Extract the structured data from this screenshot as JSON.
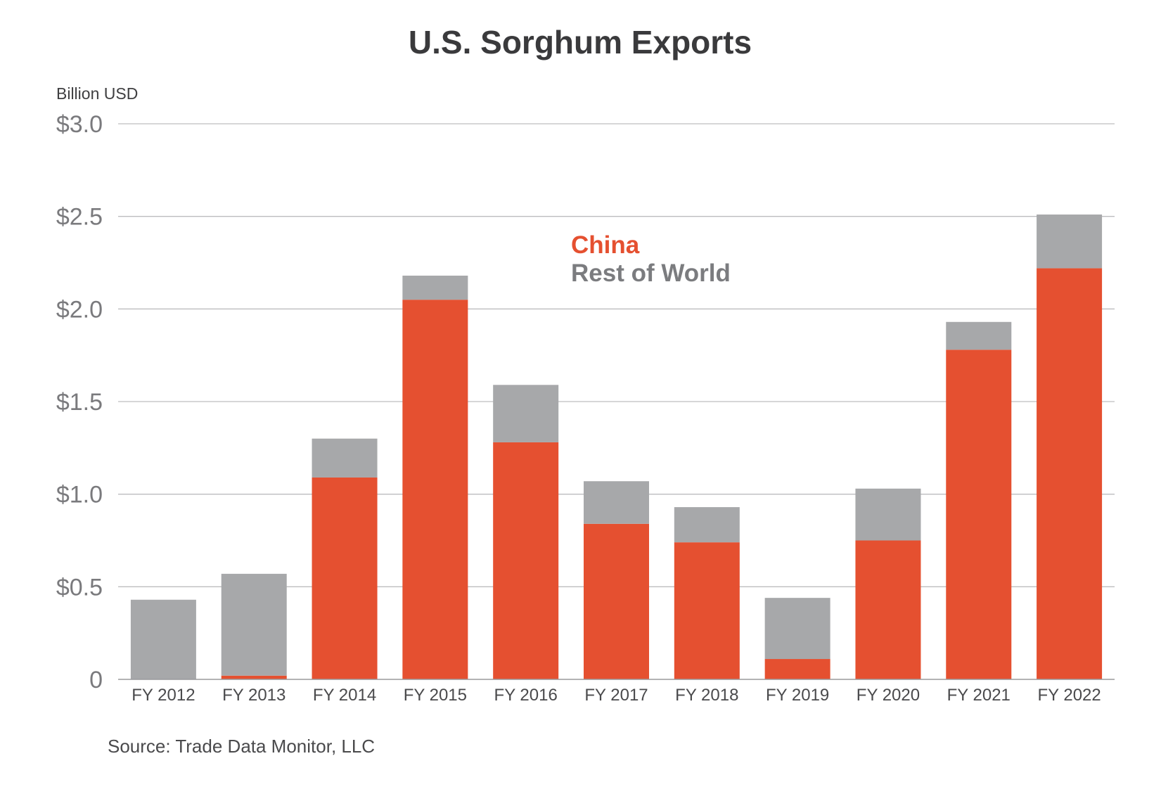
{
  "chart_data": {
    "type": "bar",
    "stacked": true,
    "title": "U.S. Sorghum Exports",
    "unit_label": "Billion USD",
    "categories": [
      "FY 2012",
      "FY 2013",
      "FY 2014",
      "FY 2015",
      "FY 2016",
      "FY 2017",
      "FY 2018",
      "FY 2019",
      "FY 2020",
      "FY 2021",
      "FY 2022"
    ],
    "series": [
      {
        "name": "China",
        "color": "#e55030",
        "values": [
          0.0,
          0.02,
          1.09,
          2.05,
          1.28,
          0.84,
          0.74,
          0.11,
          0.75,
          1.78,
          2.22
        ]
      },
      {
        "name": "Rest of World",
        "color": "#a7a8aa",
        "values": [
          0.43,
          0.55,
          0.21,
          0.13,
          0.31,
          0.23,
          0.19,
          0.33,
          0.28,
          0.15,
          0.29
        ]
      }
    ],
    "ylim": [
      0,
      3.0
    ],
    "y_ticks": [
      {
        "value": 0,
        "label": "0"
      },
      {
        "value": 0.5,
        "label": "$0.5"
      },
      {
        "value": 1.0,
        "label": "$1.0"
      },
      {
        "value": 1.5,
        "label": "$1.5"
      },
      {
        "value": 2.0,
        "label": "$2.0"
      },
      {
        "value": 2.5,
        "label": "$2.5"
      },
      {
        "value": 3.0,
        "label": "$3.0"
      }
    ],
    "grid": true,
    "legend_position": "top-center",
    "source": "Source: Trade Data Monitor, LLC"
  }
}
